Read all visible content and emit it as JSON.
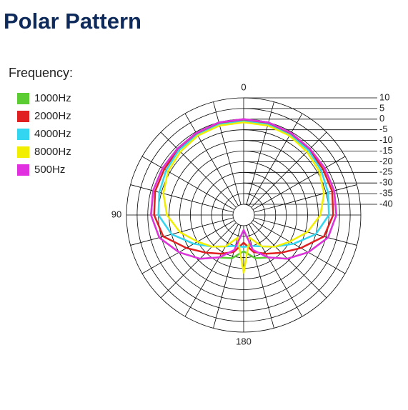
{
  "chart_data": {
    "type": "polar",
    "title": "Polar Pattern",
    "legend_title": "Frequency:",
    "angles": [
      0,
      15,
      30,
      45,
      60,
      75,
      90,
      105,
      120,
      135,
      150,
      165,
      180,
      195,
      210,
      225,
      240,
      255,
      270,
      285,
      300,
      315,
      330,
      345,
      360
    ],
    "angle_ticks": [
      0,
      90,
      180
    ],
    "rlim": [
      -40,
      10
    ],
    "rticks": [
      10,
      5,
      0,
      -5,
      -10,
      -15,
      -20,
      -25,
      -30,
      -35,
      -40
    ],
    "series": [
      {
        "name": "1000Hz",
        "color": "#5ccc33",
        "values": [
          0,
          0,
          -0.5,
          -1,
          -1,
          -1,
          -1.5,
          -4,
          -10,
          -16,
          -22,
          -24,
          -28,
          -24,
          -22,
          -16,
          -10,
          -4,
          -1.5,
          -1,
          -1,
          -1,
          -0.5,
          0,
          0
        ]
      },
      {
        "name": "2000Hz",
        "color": "#e02020",
        "values": [
          -0.5,
          -0.5,
          -1,
          -1.5,
          -2,
          -2,
          -3,
          -6,
          -14,
          -20,
          -24,
          -27,
          -32,
          -27,
          -24,
          -20,
          -14,
          -6,
          -3,
          -2,
          -2,
          -1.5,
          -1,
          -0.5,
          -0.5
        ]
      },
      {
        "name": "4000Hz",
        "color": "#33d6f0",
        "values": [
          -1,
          -1,
          -1.5,
          -2,
          -3,
          -4,
          -5,
          -10,
          -18,
          -24,
          -28,
          -30,
          -30,
          -30,
          -28,
          -24,
          -18,
          -10,
          -5,
          -4,
          -3,
          -2,
          -1.5,
          -1,
          -1
        ]
      },
      {
        "name": "8000Hz",
        "color": "#f2ee00",
        "values": [
          -1.5,
          -1.5,
          -2,
          -3,
          -4,
          -6,
          -9,
          -14,
          -20,
          -24,
          -28,
          -34,
          -18,
          -34,
          -28,
          -24,
          -20,
          -14,
          -9,
          -6,
          -4,
          -3,
          -2,
          -1.5,
          -1.5
        ]
      },
      {
        "name": "500Hz",
        "color": "#e030e0",
        "values": [
          0,
          0,
          -0.5,
          -1,
          -1,
          -1,
          -1.5,
          -4,
          -10,
          -16,
          -22,
          -28,
          -38,
          -28,
          -22,
          -16,
          -10,
          -4,
          -1.5,
          -1,
          -1,
          -1,
          -0.5,
          0,
          0
        ]
      }
    ]
  }
}
